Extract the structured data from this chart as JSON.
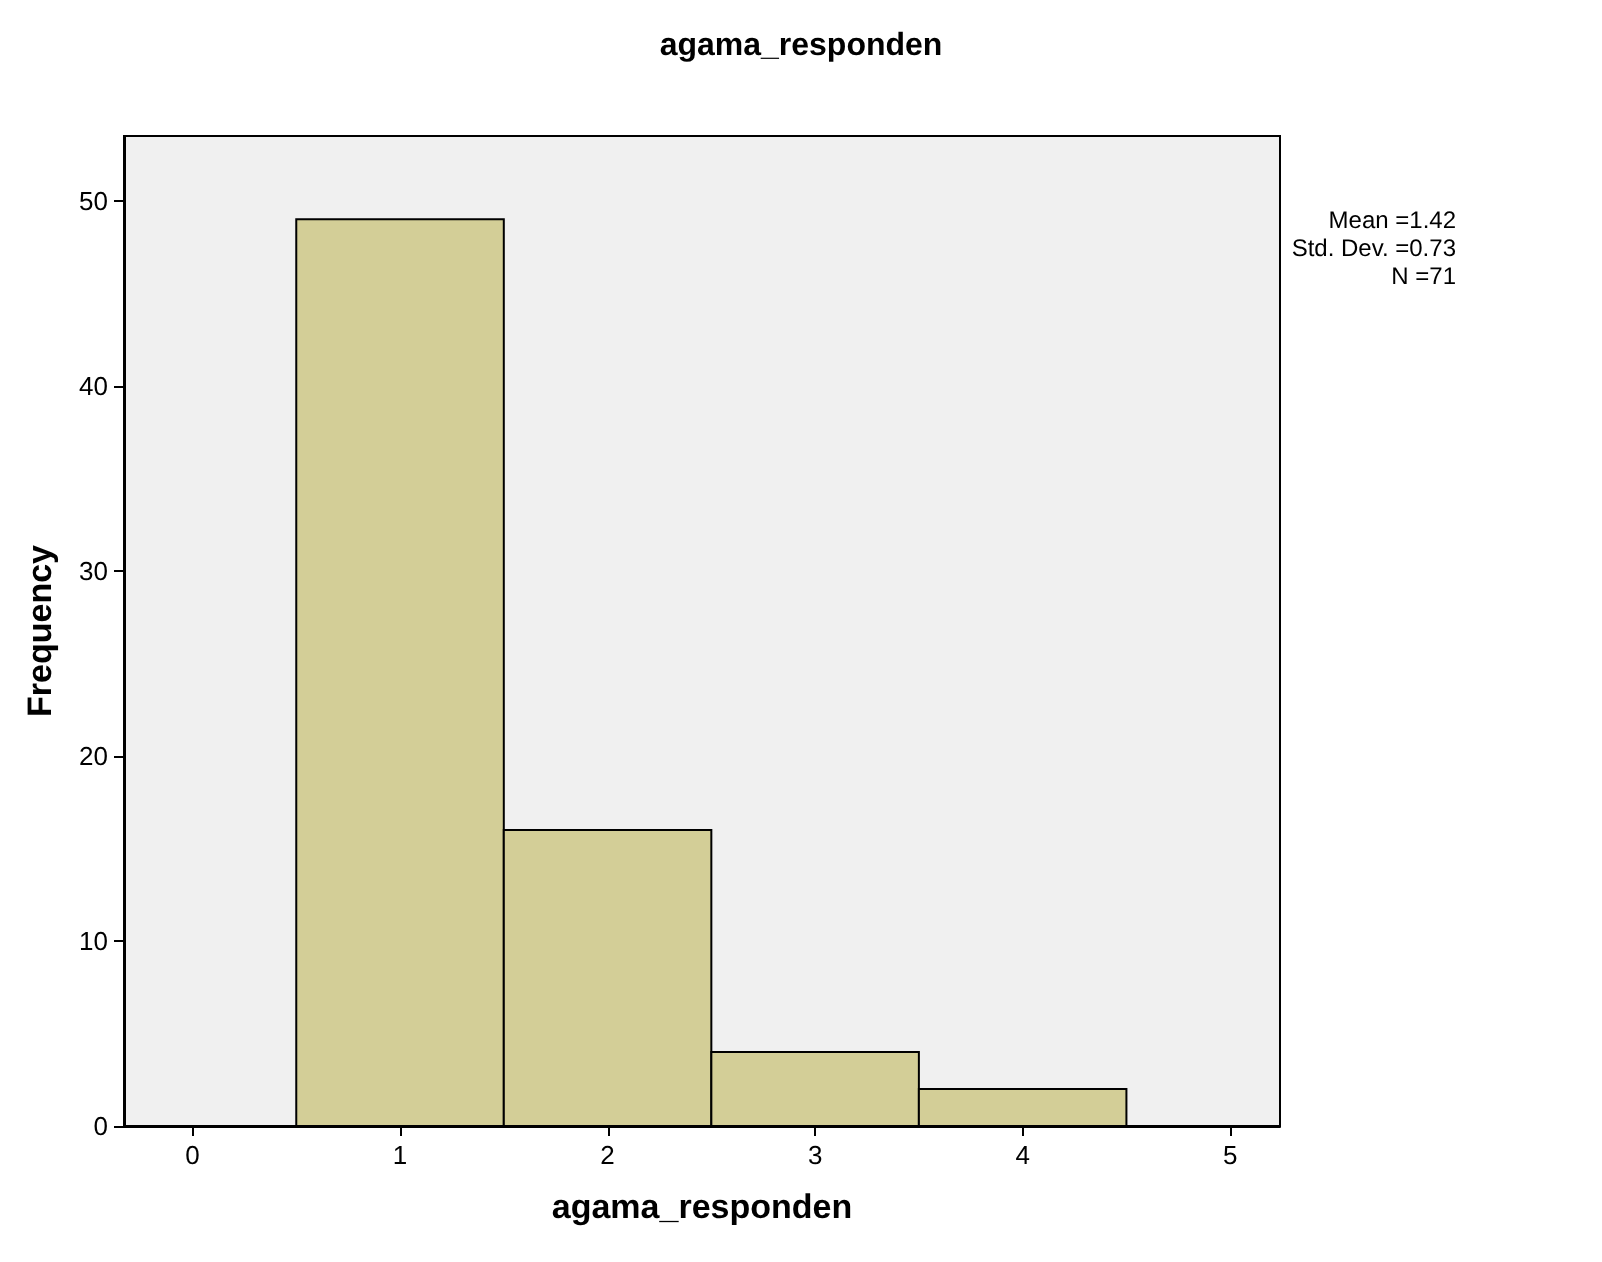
{
  "chart_data": {
    "type": "histogram",
    "title": "agama_responden",
    "xlabel": "agama_responden",
    "ylabel": "Frequency",
    "bins": [
      0.5,
      1.5,
      2.5,
      3.5,
      4.5
    ],
    "values": [
      49,
      16,
      4,
      2
    ],
    "color": "#d3ce97",
    "xlim": [
      -0.33,
      5.24
    ],
    "xticks": [
      0,
      1,
      2,
      3,
      4,
      5
    ],
    "ylim": [
      0,
      53.5
    ],
    "yticks": [
      0,
      10,
      20,
      30,
      40,
      50
    ],
    "grid": false,
    "annotations": [
      "Mean =1.42",
      "Std. Dev. =0.73",
      "N =71"
    ]
  }
}
